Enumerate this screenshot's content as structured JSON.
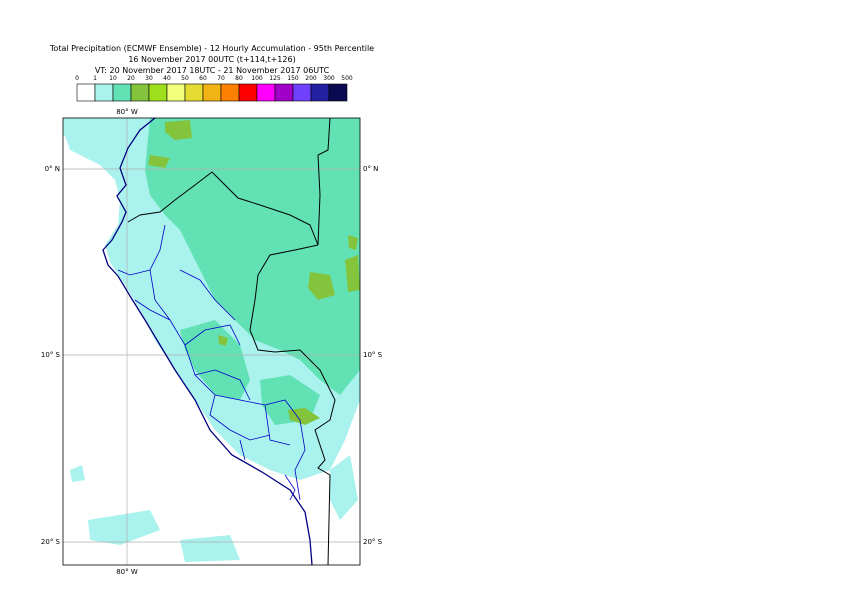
{
  "header": {
    "lines": [
      "Total Precipitation (ECMWF Ensemble) - 12 Hourly Accumulation - 95th Percentile",
      "16 November 2017 00UTC (t+114,t+126)",
      "VT: 20 November 2017 18UTC - 21 November 2017 06UTC"
    ]
  },
  "legend": {
    "levels": [
      0,
      1,
      10,
      20,
      30,
      40,
      50,
      60,
      70,
      80,
      100,
      125,
      150,
      200,
      300,
      500
    ],
    "colors": [
      "#ffffff",
      "#aaf2ee",
      "#62e2b4",
      "#84c43c",
      "#9ee01c",
      "#f0ff7c",
      "#e4dc30",
      "#f2b414",
      "#ff8000",
      "#ff0000",
      "#ff00ff",
      "#a000c8",
      "#7040ff",
      "#2020a0",
      "#0a0a50"
    ]
  },
  "map": {
    "longitude_label": "80° W",
    "latitude_labels": [
      "0° N",
      "10° S",
      "20° S"
    ]
  }
}
